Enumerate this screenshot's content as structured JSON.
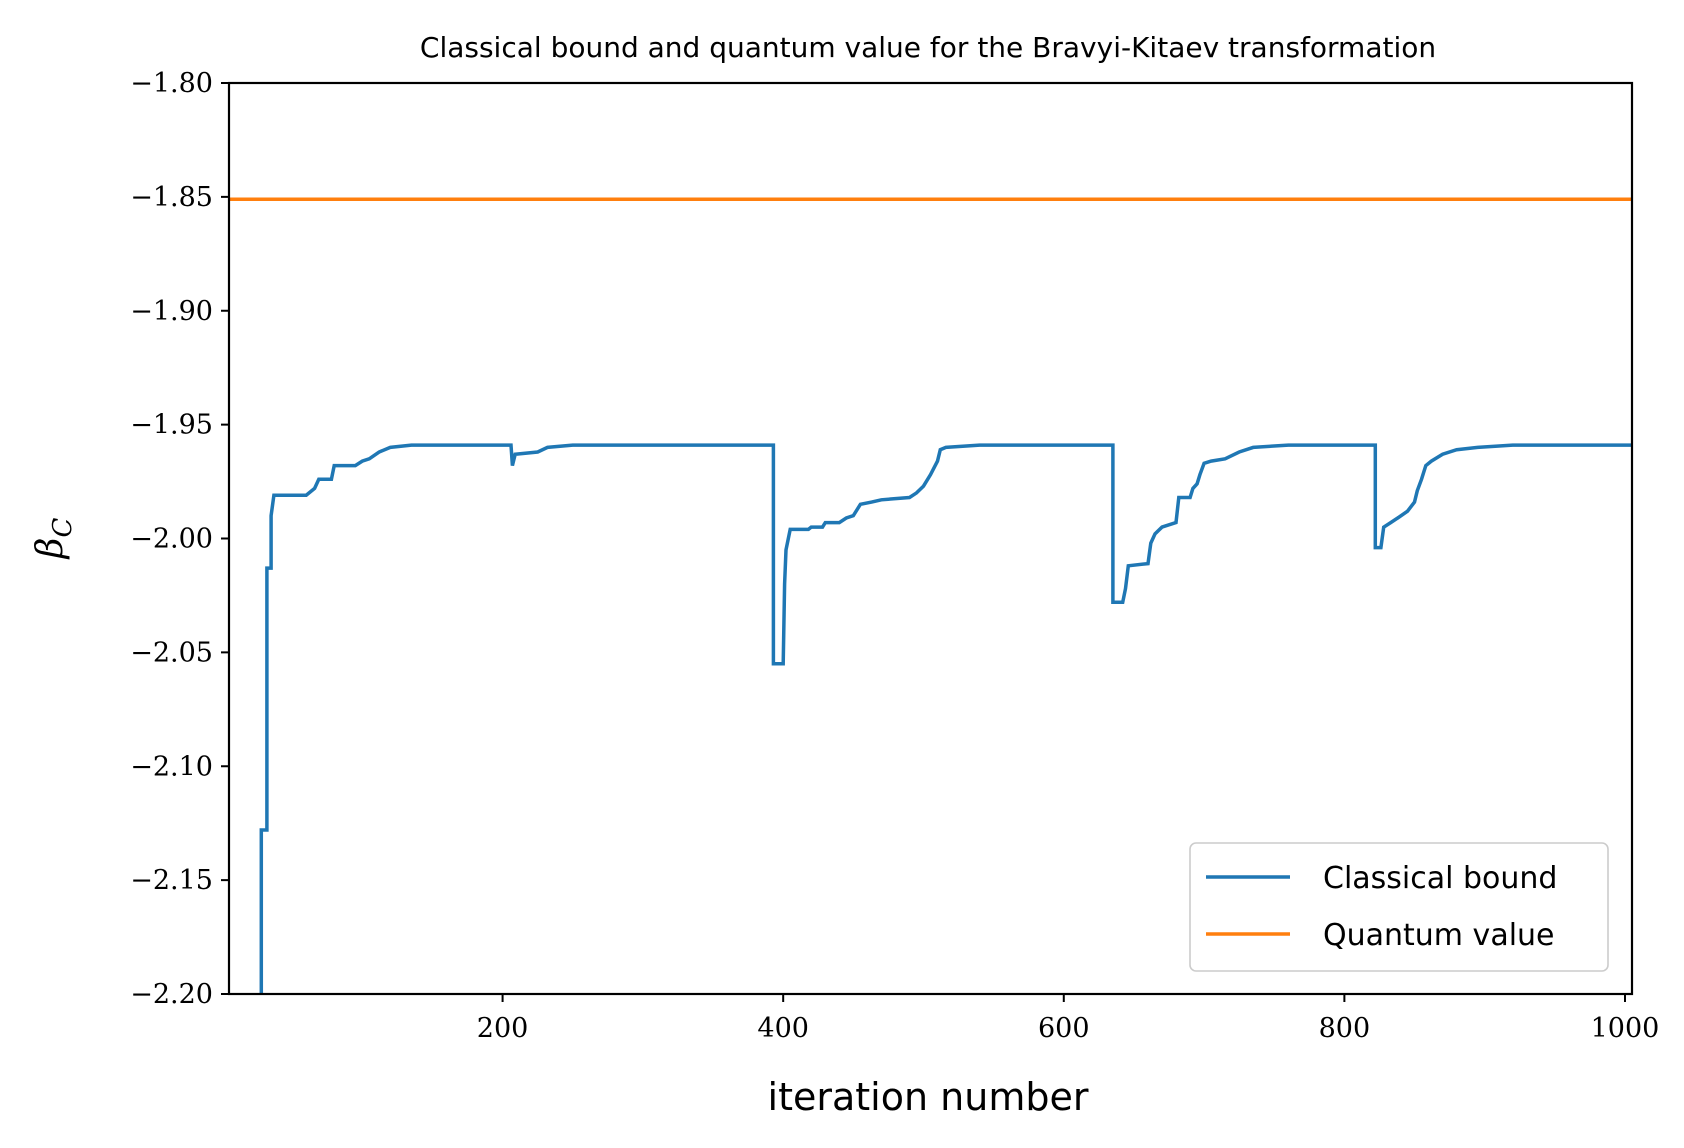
{
  "chart_data": {
    "type": "line",
    "title": "Classical bound and quantum value for the Bravyi-Kitaev transformation",
    "xlabel": "iteration number",
    "ylabel": "β",
    "ylabel_subscript": "C",
    "xlim": [
      5,
      1005
    ],
    "ylim": [
      -2.2,
      -1.8
    ],
    "xticks": [
      200,
      400,
      600,
      800,
      1000
    ],
    "yticks": [
      -2.2,
      -2.15,
      -2.1,
      -2.05,
      -2.0,
      -1.95,
      -1.9,
      -1.85,
      -1.8
    ],
    "xtick_labels": [
      "200",
      "400",
      "600",
      "800",
      "1000"
    ],
    "ytick_labels": [
      "−2.20",
      "−2.15",
      "−2.10",
      "−2.05",
      "−2.00",
      "−1.95",
      "−1.90",
      "−1.85",
      "−1.80"
    ],
    "grid": false,
    "legend_position": "lower-right",
    "series": [
      {
        "name": "Classical bound",
        "color": "#1f77b4",
        "style": "step",
        "points": [
          [
            28,
            -2.2
          ],
          [
            28,
            -2.128
          ],
          [
            32,
            -2.128
          ],
          [
            32,
            -2.013
          ],
          [
            35,
            -2.013
          ],
          [
            35,
            -1.99
          ],
          [
            37,
            -1.981
          ],
          [
            60,
            -1.981
          ],
          [
            66,
            -1.978
          ],
          [
            69,
            -1.974
          ],
          [
            78,
            -1.974
          ],
          [
            80,
            -1.968
          ],
          [
            95,
            -1.968
          ],
          [
            100,
            -1.966
          ],
          [
            105,
            -1.965
          ],
          [
            112,
            -1.962
          ],
          [
            120,
            -1.96
          ],
          [
            135,
            -1.959
          ],
          [
            180,
            -1.959
          ],
          [
            206,
            -1.959
          ],
          [
            207,
            -1.968
          ],
          [
            209,
            -1.963
          ],
          [
            225,
            -1.962
          ],
          [
            232,
            -1.96
          ],
          [
            250,
            -1.959
          ],
          [
            290,
            -1.959
          ],
          [
            330,
            -1.959
          ],
          [
            393,
            -1.959
          ],
          [
            393,
            -2.055
          ],
          [
            400,
            -2.055
          ],
          [
            401,
            -2.02
          ],
          [
            402,
            -2.005
          ],
          [
            405,
            -1.996
          ],
          [
            418,
            -1.996
          ],
          [
            420,
            -1.995
          ],
          [
            428,
            -1.995
          ],
          [
            430,
            -1.993
          ],
          [
            440,
            -1.993
          ],
          [
            445,
            -1.991
          ],
          [
            450,
            -1.99
          ],
          [
            455,
            -1.985
          ],
          [
            463,
            -1.984
          ],
          [
            470,
            -1.983
          ],
          [
            490,
            -1.982
          ],
          [
            495,
            -1.98
          ],
          [
            500,
            -1.977
          ],
          [
            505,
            -1.972
          ],
          [
            510,
            -1.966
          ],
          [
            512,
            -1.961
          ],
          [
            516,
            -1.96
          ],
          [
            540,
            -1.959
          ],
          [
            560,
            -1.959
          ],
          [
            580,
            -1.959
          ],
          [
            635,
            -1.959
          ],
          [
            635,
            -2.028
          ],
          [
            642,
            -2.028
          ],
          [
            644,
            -2.022
          ],
          [
            646,
            -2.012
          ],
          [
            660,
            -2.011
          ],
          [
            662,
            -2.002
          ],
          [
            665,
            -1.998
          ],
          [
            670,
            -1.995
          ],
          [
            680,
            -1.993
          ],
          [
            682,
            -1.982
          ],
          [
            690,
            -1.982
          ],
          [
            692,
            -1.978
          ],
          [
            695,
            -1.976
          ],
          [
            697,
            -1.972
          ],
          [
            700,
            -1.967
          ],
          [
            705,
            -1.966
          ],
          [
            715,
            -1.965
          ],
          [
            725,
            -1.962
          ],
          [
            735,
            -1.96
          ],
          [
            760,
            -1.959
          ],
          [
            800,
            -1.959
          ],
          [
            822,
            -1.959
          ],
          [
            822,
            -2.004
          ],
          [
            826,
            -2.004
          ],
          [
            828,
            -1.995
          ],
          [
            833,
            -1.993
          ],
          [
            838,
            -1.991
          ],
          [
            845,
            -1.988
          ],
          [
            850,
            -1.984
          ],
          [
            852,
            -1.979
          ],
          [
            855,
            -1.974
          ],
          [
            858,
            -1.968
          ],
          [
            862,
            -1.966
          ],
          [
            870,
            -1.963
          ],
          [
            880,
            -1.961
          ],
          [
            895,
            -1.96
          ],
          [
            920,
            -1.959
          ],
          [
            1005,
            -1.959
          ]
        ]
      },
      {
        "name": "Quantum value",
        "color": "#ff7f0e",
        "style": "line",
        "points": [
          [
            5,
            -1.851
          ],
          [
            1005,
            -1.851
          ]
        ]
      }
    ]
  }
}
